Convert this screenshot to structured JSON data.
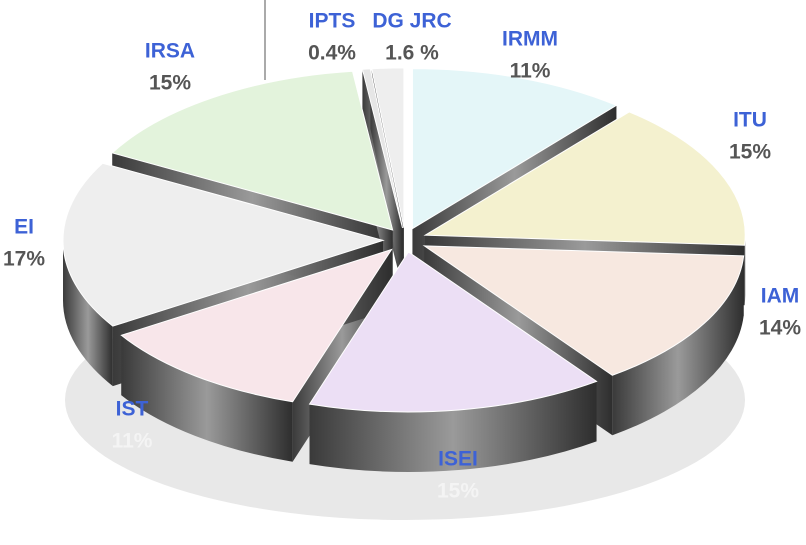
{
  "chart_data": {
    "type": "pie",
    "categories": [
      "IRMM",
      "ITU",
      "IAM",
      "ISEI",
      "IST",
      "EI",
      "IRSA",
      "IPTS",
      "DG JRC"
    ],
    "values": [
      11,
      15,
      14,
      15,
      11,
      17,
      15,
      0.4,
      1.6
    ],
    "value_labels": [
      "11%",
      "15%",
      "14%",
      "15%",
      "11%",
      "17%",
      "15%",
      "0.4%",
      "1.6 %"
    ],
    "colors": [
      "#e4f6f8",
      "#f4f1cf",
      "#f7e8e0",
      "#ecdff5",
      "#f8e6ea",
      "#eeeeee",
      "#e3f3dc",
      "#e6e6e6",
      "#eeeeee"
    ]
  }
}
